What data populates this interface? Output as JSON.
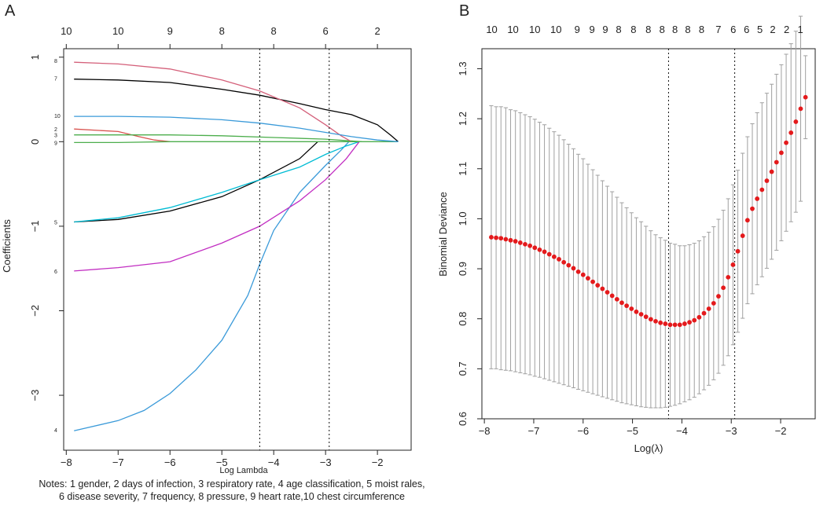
{
  "chart_data": [
    {
      "panel_label": "A",
      "type": "line",
      "xlabel": "Log Lambda",
      "ylabel": "Coefficients",
      "xlim": [
        -8.05,
        -1.35
      ],
      "ylim": [
        -3.65,
        1.1
      ],
      "xticks": [
        -8,
        -7,
        -6,
        -5,
        -4,
        -3,
        -2
      ],
      "yticks": [
        -3,
        -2,
        -1,
        0,
        1
      ],
      "top_axis": {
        "positions": [
          -8,
          -7,
          -6,
          -5,
          -4,
          -3,
          -2
        ],
        "labels": [
          "10",
          "10",
          "9",
          "8",
          "8",
          "6",
          "2"
        ]
      },
      "vlines": [
        -4.27,
        -2.93
      ],
      "series": [
        {
          "name": "1",
          "color": "#000000",
          "points": [
            [
              -7.85,
              -0.95
            ],
            [
              -7,
              -0.92
            ],
            [
              -6,
              -0.82
            ],
            [
              -5,
              -0.65
            ],
            [
              -4.27,
              -0.45
            ],
            [
              -3.5,
              -0.2
            ],
            [
              -3.15,
              0
            ]
          ]
        },
        {
          "name": "2",
          "color": "#d9534f",
          "points": [
            [
              -7.85,
              0.15
            ],
            [
              -7,
              0.12
            ],
            [
              -6.6,
              0.06
            ],
            [
              -6.3,
              0.02
            ],
            [
              -6.0,
              0.0
            ]
          ]
        },
        {
          "name": "3",
          "color": "#4cae4c",
          "points": [
            [
              -7.85,
              0.08
            ],
            [
              -7,
              0.08
            ],
            [
              -6,
              0.08
            ],
            [
              -5,
              0.07
            ],
            [
              -4,
              0.05
            ],
            [
              -3,
              0.03
            ],
            [
              -2.3,
              0
            ]
          ]
        },
        {
          "name": "4",
          "color": "#3a9ad9",
          "points": [
            [
              -7.85,
              -3.42
            ],
            [
              -7,
              -3.3
            ],
            [
              -6.5,
              -3.18
            ],
            [
              -6,
              -2.98
            ],
            [
              -5.5,
              -2.7
            ],
            [
              -5,
              -2.35
            ],
            [
              -4.5,
              -1.82
            ],
            [
              -4.27,
              -1.45
            ],
            [
              -4,
              -1.05
            ],
            [
              -3.5,
              -0.6
            ],
            [
              -3,
              -0.28
            ],
            [
              -2.7,
              -0.1
            ],
            [
              -2.55,
              0
            ]
          ]
        },
        {
          "name": "5",
          "color": "#00bcd4",
          "points": [
            [
              -7.85,
              -0.95
            ],
            [
              -7,
              -0.9
            ],
            [
              -6,
              -0.78
            ],
            [
              -5,
              -0.6
            ],
            [
              -4.27,
              -0.45
            ],
            [
              -3.5,
              -0.3
            ],
            [
              -3,
              -0.15
            ],
            [
              -2.6,
              -0.05
            ],
            [
              -2.35,
              0
            ]
          ]
        },
        {
          "name": "6",
          "color": "#c22ec2",
          "points": [
            [
              -7.85,
              -1.53
            ],
            [
              -7,
              -1.49
            ],
            [
              -6,
              -1.42
            ],
            [
              -5,
              -1.2
            ],
            [
              -4.27,
              -1.0
            ],
            [
              -3.5,
              -0.7
            ],
            [
              -3,
              -0.45
            ],
            [
              -2.6,
              -0.2
            ],
            [
              -2.35,
              0
            ]
          ]
        },
        {
          "name": "7",
          "color": "#000000",
          "points": [
            [
              -7.85,
              0.74
            ],
            [
              -7,
              0.73
            ],
            [
              -6,
              0.7
            ],
            [
              -5,
              0.62
            ],
            [
              -4.27,
              0.55
            ],
            [
              -3.5,
              0.45
            ],
            [
              -3,
              0.38
            ],
            [
              -2.5,
              0.32
            ],
            [
              -2.0,
              0.2
            ],
            [
              -1.75,
              0.08
            ],
            [
              -1.6,
              0
            ]
          ]
        },
        {
          "name": "8",
          "color": "#d4607a",
          "points": [
            [
              -7.85,
              0.94
            ],
            [
              -7,
              0.92
            ],
            [
              -6,
              0.86
            ],
            [
              -5,
              0.73
            ],
            [
              -4.27,
              0.6
            ],
            [
              -3.5,
              0.4
            ],
            [
              -3,
              0.2
            ],
            [
              -2.7,
              0.07
            ],
            [
              -2.5,
              0
            ]
          ]
        },
        {
          "name": "9",
          "color": "#4cae4c",
          "points": [
            [
              -7.85,
              -0.01
            ],
            [
              -7,
              -0.01
            ],
            [
              -6,
              0
            ],
            [
              -5,
              0
            ],
            [
              -4,
              0
            ],
            [
              -3,
              0
            ],
            [
              -2,
              0
            ],
            [
              -1.6,
              0
            ]
          ]
        },
        {
          "name": "10",
          "color": "#3a9ad9",
          "points": [
            [
              -7.85,
              0.3
            ],
            [
              -7,
              0.3
            ],
            [
              -6,
              0.29
            ],
            [
              -5,
              0.26
            ],
            [
              -4.27,
              0.22
            ],
            [
              -3.5,
              0.16
            ],
            [
              -3,
              0.11
            ],
            [
              -2.5,
              0.06
            ],
            [
              -2,
              0.02
            ],
            [
              -1.6,
              0
            ]
          ]
        }
      ],
      "line_labels": [
        {
          "text": "8",
          "y": 0.96
        },
        {
          "text": "7",
          "y": 0.75
        },
        {
          "text": "10",
          "y": 0.31
        },
        {
          "text": "2",
          "y": 0.15
        },
        {
          "text": "3",
          "y": 0.08
        },
        {
          "text": "9",
          "y": -0.01
        },
        {
          "text": "5",
          "y": -0.95
        },
        {
          "text": "6",
          "y": -1.53
        },
        {
          "text": "4",
          "y": -3.41
        }
      ]
    },
    {
      "panel_label": "B",
      "type": "scatter",
      "xlabel": "Log(λ)",
      "ylabel": "Binomial Deviance",
      "xlim": [
        -8.05,
        -1.3
      ],
      "ylim": [
        0.6,
        1.34
      ],
      "xticks": [
        -8,
        -7,
        -6,
        -5,
        -4,
        -3,
        -2
      ],
      "yticks": [
        0.6,
        0.7,
        0.8,
        0.9,
        1.0,
        1.1,
        1.2,
        1.3
      ],
      "top_axis": {
        "positions": [
          -7.85,
          -7.42,
          -6.98,
          -6.55,
          -6.12,
          -5.82,
          -5.55,
          -5.28,
          -4.98,
          -4.68,
          -4.4,
          -4.14,
          -3.88,
          -3.6,
          -3.26,
          -2.96,
          -2.69,
          -2.42,
          -2.16,
          -1.88,
          -1.6
        ],
        "labels": [
          "10",
          "10",
          "10",
          "10",
          "9",
          "9",
          "9",
          "8",
          "8",
          "8",
          "8",
          "8",
          "8",
          "8",
          "7",
          "6",
          "6",
          "5",
          "2",
          "2",
          "1"
        ]
      },
      "vlines": [
        -4.27,
        -2.93
      ],
      "point_color": "#e41a1c",
      "errorbar_color": "#a0a0a0",
      "x_start": -7.86,
      "x_step": 0.0979,
      "values": [
        0.963,
        0.962,
        0.961,
        0.959,
        0.957,
        0.955,
        0.952,
        0.949,
        0.946,
        0.942,
        0.938,
        0.934,
        0.929,
        0.924,
        0.919,
        0.913,
        0.907,
        0.901,
        0.894,
        0.888,
        0.881,
        0.874,
        0.867,
        0.86,
        0.853,
        0.846,
        0.839,
        0.832,
        0.826,
        0.82,
        0.814,
        0.809,
        0.804,
        0.799,
        0.795,
        0.792,
        0.79,
        0.788,
        0.788,
        0.788,
        0.79,
        0.793,
        0.797,
        0.803,
        0.811,
        0.82,
        0.831,
        0.845,
        0.862,
        0.883,
        0.908,
        0.935,
        0.966,
        0.997,
        1.02,
        1.04,
        1.058,
        1.076,
        1.094,
        1.113,
        1.132,
        1.152,
        1.172,
        1.194,
        1.22,
        1.243
      ],
      "lower": [
        0.7,
        0.7,
        0.698,
        0.697,
        0.696,
        0.694,
        0.692,
        0.69,
        0.688,
        0.685,
        0.683,
        0.68,
        0.677,
        0.674,
        0.671,
        0.668,
        0.665,
        0.662,
        0.659,
        0.656,
        0.653,
        0.65,
        0.647,
        0.644,
        0.641,
        0.638,
        0.635,
        0.632,
        0.63,
        0.628,
        0.626,
        0.624,
        0.623,
        0.622,
        0.622,
        0.622,
        0.623,
        0.625,
        0.627,
        0.63,
        0.634,
        0.638,
        0.643,
        0.65,
        0.658,
        0.667,
        0.678,
        0.691,
        0.707,
        0.726,
        0.748,
        0.773,
        0.801,
        0.83,
        0.85,
        0.868,
        0.884,
        0.901,
        0.919,
        0.937,
        0.956,
        0.975,
        0.994,
        1.013,
        1.035,
        1.16
      ],
      "upper": [
        1.226,
        1.224,
        1.224,
        1.222,
        1.218,
        1.216,
        1.212,
        1.208,
        1.204,
        1.199,
        1.193,
        1.188,
        1.181,
        1.174,
        1.167,
        1.158,
        1.149,
        1.14,
        1.129,
        1.12,
        1.109,
        1.098,
        1.087,
        1.076,
        1.065,
        1.054,
        1.043,
        1.032,
        1.022,
        1.012,
        1.002,
        0.994,
        0.985,
        0.976,
        0.968,
        0.962,
        0.957,
        0.951,
        0.949,
        0.946,
        0.946,
        0.948,
        0.951,
        0.956,
        0.964,
        0.973,
        0.984,
        0.999,
        1.017,
        1.04,
        1.068,
        1.097,
        1.131,
        1.164,
        1.19,
        1.212,
        1.232,
        1.251,
        1.269,
        1.289,
        1.308,
        1.329,
        1.35,
        1.375,
        1.405,
        1.326
      ]
    }
  ],
  "notes": {
    "line1": "Notes: 1 gender, 2 days of infection, 3 respiratory rate, 4 age classification, 5 moist rales,",
    "line2": "6 disease severity, 7 frequency, 8 pressure, 9 heart rate,10 chest circumference"
  }
}
